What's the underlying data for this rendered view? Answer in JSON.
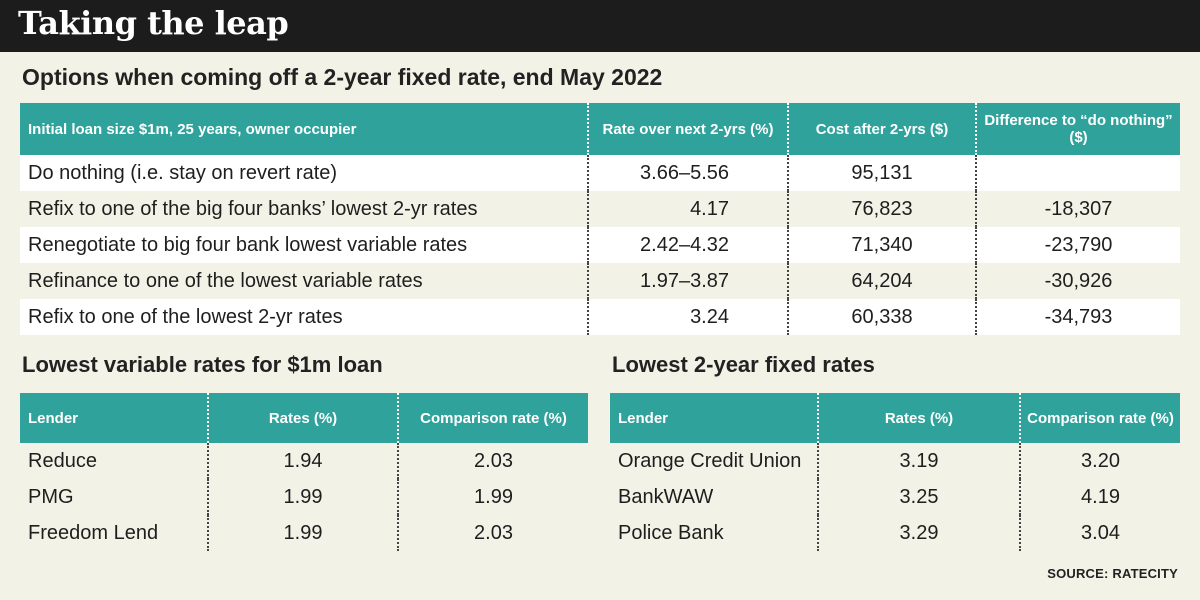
{
  "title": "Taking the leap",
  "subtitle": "Options when coming off a 2-year fixed rate, end May 2022",
  "main_table": {
    "headers": [
      "Initial loan size $1m, 25 years, owner occupier",
      "Rate over next 2-yrs (%)",
      "Cost after 2-yrs ($)",
      "Difference to “do nothing” ($)"
    ],
    "rows": [
      {
        "option": "Do nothing (i.e. stay on revert rate)",
        "rate": "3.66–5.56",
        "cost": "95,131",
        "diff": ""
      },
      {
        "option": "Refix to one of the big four banks’ lowest 2-yr rates",
        "rate": "4.17",
        "cost": "76,823",
        "diff": "-18,307"
      },
      {
        "option": "Renegotiate to big four bank lowest variable rates",
        "rate": "2.42–4.32",
        "cost": "71,340",
        "diff": "-23,790"
      },
      {
        "option": "Refinance to one of the lowest variable rates",
        "rate": "1.97–3.87",
        "cost": "64,204",
        "diff": "-30,926"
      },
      {
        "option": "Refix to one of the lowest 2-yr rates",
        "rate": "3.24",
        "cost": "60,338",
        "diff": "-34,793"
      }
    ]
  },
  "variable_section": {
    "title": "Lowest variable rates for $1m loan",
    "headers": [
      "Lender",
      "Rates (%)",
      "Comparison rate (%)"
    ],
    "rows": [
      {
        "lender": "Reduce",
        "rate": "1.94",
        "comparison": "2.03"
      },
      {
        "lender": "PMG",
        "rate": "1.99",
        "comparison": "1.99"
      },
      {
        "lender": "Freedom Lend",
        "rate": "1.99",
        "comparison": "2.03"
      }
    ]
  },
  "fixed_section": {
    "title": "Lowest 2-year fixed rates",
    "headers": [
      "Lender",
      "Rates (%)",
      "Comparison rate (%)"
    ],
    "rows": [
      {
        "lender": "Orange Credit Union",
        "rate": "3.19",
        "comparison": "3.20"
      },
      {
        "lender": "BankWAW",
        "rate": "3.25",
        "comparison": "4.19"
      },
      {
        "lender": "Police Bank",
        "rate": "3.29",
        "comparison": "3.04"
      }
    ]
  },
  "source": "SOURCE: RATECITY",
  "colors": {
    "header_bar": "#1c1c1c",
    "accent_teal": "#2fa39b",
    "background": "#f3f2e7"
  }
}
